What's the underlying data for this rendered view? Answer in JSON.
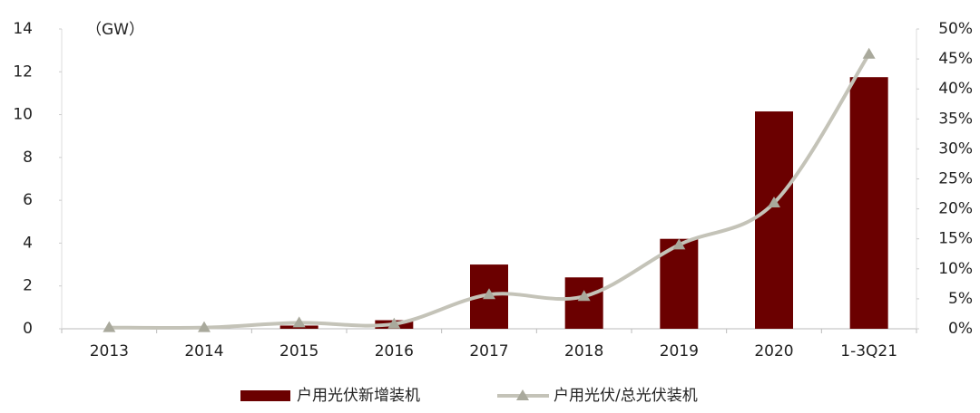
{
  "chart_data": {
    "type": "combo",
    "unit_label": "（GW）",
    "categories": [
      "2013",
      "2014",
      "2015",
      "2016",
      "2017",
      "2018",
      "2019",
      "2020",
      "1-3Q21"
    ],
    "series": [
      {
        "name": "户用光伏新增装机",
        "type": "bar",
        "color": "#6b0000",
        "values": [
          0,
          0,
          0.15,
          0.4,
          3.0,
          2.4,
          4.2,
          10.15,
          11.75
        ]
      },
      {
        "name": "户用光伏/总光伏装机",
        "type": "line",
        "axis": "y2",
        "color": "#c4c3b8",
        "marker_color": "#a9a99c",
        "values": [
          0.2,
          0.2,
          1.0,
          0.8,
          5.7,
          5.4,
          14,
          21,
          45.8
        ]
      }
    ],
    "ylim": [
      0,
      14
    ],
    "yticks": [
      0,
      2,
      4,
      6,
      8,
      10,
      12,
      14
    ],
    "y2lim": [
      0,
      50
    ],
    "y2ticks": [
      {
        "value": 0,
        "label": "0%"
      },
      {
        "value": 5,
        "label": "5%"
      },
      {
        "value": 10,
        "label": "10%"
      },
      {
        "value": 15,
        "label": "15%"
      },
      {
        "value": 20,
        "label": "20%"
      },
      {
        "value": 25,
        "label": "25%"
      },
      {
        "value": 30,
        "label": "30%"
      },
      {
        "value": 35,
        "label": "35%"
      },
      {
        "value": 40,
        "label": "40%"
      },
      {
        "value": 45,
        "label": "45%"
      },
      {
        "value": 50,
        "label": "50%"
      }
    ]
  }
}
